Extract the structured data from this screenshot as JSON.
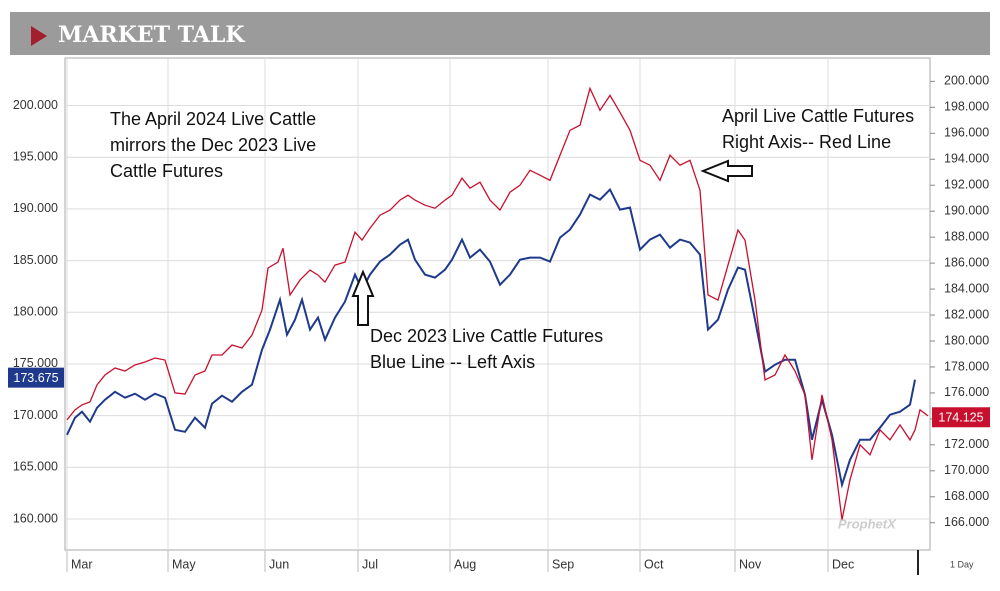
{
  "header": {
    "title": "MARKET TALK"
  },
  "chart_data": {
    "type": "line",
    "xlim": [
      0,
      865
    ],
    "xticks": [
      {
        "value": 2,
        "label": "Mar"
      },
      {
        "value": 103,
        "label": "May"
      },
      {
        "value": 200,
        "label": "Jun"
      },
      {
        "value": 293,
        "label": "Jul"
      },
      {
        "value": 385,
        "label": "Aug"
      },
      {
        "value": 483,
        "label": "Sep"
      },
      {
        "value": 575,
        "label": "Oct"
      },
      {
        "value": 670,
        "label": "Nov"
      },
      {
        "value": 763,
        "label": "Dec"
      }
    ],
    "ylim": [
      157,
      204.6
    ],
    "yticks": [
      {
        "value": 160,
        "label": "160.000"
      },
      {
        "value": 165,
        "label": "165.000"
      },
      {
        "value": 170,
        "label": "170.000"
      },
      {
        "value": 175,
        "label": "175.000"
      },
      {
        "value": 180,
        "label": "180.000"
      },
      {
        "value": 185,
        "label": "185.000"
      },
      {
        "value": 190,
        "label": "190.000"
      },
      {
        "value": 195,
        "label": "195.000"
      },
      {
        "value": 200,
        "label": "200.000"
      }
    ],
    "y2lim": [
      163.9,
      201.8
    ],
    "y2ticks": [
      {
        "value": 166,
        "label": "166.000"
      },
      {
        "value": 168,
        "label": "168.000"
      },
      {
        "value": 170,
        "label": "170.000"
      },
      {
        "value": 172,
        "label": "172.000"
      },
      {
        "value": 174,
        "label": "174.000"
      },
      {
        "value": 176,
        "label": "176.000"
      },
      {
        "value": 178,
        "label": "178.000"
      },
      {
        "value": 180,
        "label": "180.000"
      },
      {
        "value": 182,
        "label": "182.000"
      },
      {
        "value": 184,
        "label": "184.000"
      },
      {
        "value": 186,
        "label": "186.000"
      },
      {
        "value": 188,
        "label": "188.000"
      },
      {
        "value": 190,
        "label": "190.000"
      },
      {
        "value": 192,
        "label": "192.000"
      },
      {
        "value": 194,
        "label": "194.000"
      },
      {
        "value": 196,
        "label": "196.000"
      },
      {
        "value": 198,
        "label": "198.000"
      },
      {
        "value": 200,
        "label": "200.000"
      }
    ],
    "grid": true,
    "series": [
      {
        "color": "#1f3a8c",
        "axis": "y",
        "x": [
          2,
          10,
          17,
          25,
          32,
          40,
          50,
          60,
          70,
          80,
          90,
          100,
          110,
          120,
          130,
          140,
          147,
          157,
          167,
          177,
          187,
          197,
          205,
          215,
          222,
          230,
          237,
          245,
          253,
          260,
          270,
          280,
          290,
          297,
          305,
          315,
          325,
          335,
          343,
          350,
          360,
          370,
          380,
          387,
          397,
          405,
          415,
          425,
          435,
          445,
          455,
          465,
          475,
          485,
          495,
          505,
          515,
          525,
          535,
          545,
          555,
          565,
          575,
          585,
          595,
          605,
          615,
          625,
          635,
          643,
          653,
          663,
          673,
          680,
          690,
          700,
          710,
          720,
          730,
          740,
          747,
          757,
          767,
          777,
          785,
          795,
          805,
          815,
          825,
          835,
          845,
          850
        ],
        "values": [
          168.15,
          169.8,
          170.38,
          169.41,
          170.76,
          171.54,
          172.31,
          171.73,
          172.12,
          171.54,
          172.12,
          171.73,
          168.63,
          168.44,
          169.8,
          168.83,
          171.15,
          171.93,
          171.35,
          172.31,
          172.99,
          176.38,
          178.32,
          181.22,
          177.83,
          179.28,
          181.22,
          178.32,
          179.48,
          177.35,
          179.48,
          181.03,
          183.64,
          182.19,
          183.64,
          184.9,
          185.58,
          186.54,
          187.03,
          185.09,
          183.64,
          183.35,
          184.12,
          185.09,
          187.03,
          185.29,
          186.06,
          184.9,
          182.67,
          183.64,
          185.09,
          185.29,
          185.29,
          184.9,
          187.22,
          188.0,
          189.45,
          191.38,
          190.9,
          191.87,
          189.93,
          190.13,
          186.06,
          187.03,
          187.51,
          186.25,
          187.03,
          186.74,
          185.58,
          178.32,
          179.28,
          182.19,
          184.32,
          184.12,
          179.28,
          174.25,
          174.93,
          175.41,
          175.41,
          172.02,
          167.67,
          171.54,
          168.15,
          163.31,
          165.73,
          167.67,
          167.67,
          168.83,
          170.09,
          170.38,
          171.06,
          173.48
        ],
        "last_label": {
          "value": 173.675,
          "label": "173.675"
        }
      },
      {
        "color": "#c8102e",
        "axis": "y2",
        "x": [
          2,
          10,
          17,
          25,
          32,
          40,
          50,
          60,
          70,
          80,
          90,
          100,
          110,
          120,
          130,
          140,
          147,
          157,
          167,
          177,
          187,
          197,
          203,
          213,
          218,
          225,
          235,
          245,
          253,
          260,
          270,
          280,
          290,
          297,
          305,
          315,
          325,
          335,
          343,
          350,
          360,
          370,
          380,
          387,
          397,
          405,
          415,
          425,
          435,
          445,
          455,
          465,
          475,
          485,
          495,
          505,
          515,
          525,
          535,
          545,
          555,
          565,
          575,
          585,
          595,
          605,
          615,
          625,
          635,
          643,
          653,
          663,
          673,
          680,
          690,
          700,
          710,
          720,
          730,
          740,
          747,
          757,
          767,
          777,
          785,
          795,
          805,
          815,
          825,
          835,
          845,
          850,
          855,
          863
        ],
        "values": [
          173.92,
          174.69,
          175.08,
          175.31,
          176.62,
          177.38,
          177.92,
          177.69,
          178.15,
          178.38,
          178.69,
          178.54,
          176.0,
          175.92,
          177.38,
          177.69,
          178.92,
          178.92,
          179.69,
          179.46,
          180.46,
          182.38,
          185.62,
          186.08,
          187.15,
          183.54,
          184.69,
          185.46,
          185.08,
          184.54,
          185.85,
          186.08,
          188.38,
          187.77,
          188.69,
          189.69,
          190.08,
          190.85,
          191.23,
          190.85,
          190.46,
          190.23,
          190.85,
          191.23,
          192.54,
          191.77,
          192.23,
          190.85,
          190.08,
          191.46,
          192.0,
          193.15,
          192.77,
          192.38,
          194.31,
          196.23,
          196.62,
          199.46,
          197.77,
          198.92,
          197.62,
          196.23,
          193.92,
          193.54,
          192.38,
          194.31,
          193.54,
          193.92,
          191.62,
          183.54,
          183.15,
          185.85,
          188.54,
          187.77,
          183.15,
          177.0,
          177.38,
          178.92,
          177.69,
          175.85,
          170.85,
          175.85,
          172.38,
          166.23,
          169.31,
          172.0,
          171.23,
          173.15,
          172.38,
          173.54,
          172.38,
          173.15,
          174.69,
          174.23
        ],
        "last_label": {
          "value": 174.125,
          "label": "174.125"
        }
      }
    ],
    "annotations": [
      {
        "lines": [
          "The April 2024 Live Cattle",
          "mirrors the Dec 2023 Live",
          "Cattle Futures"
        ]
      },
      {
        "lines": [
          "Dec 2023 Live Cattle Futures",
          "Blue Line -- Left Axis"
        ]
      },
      {
        "lines": [
          "April Live Cattle Futures",
          "Right Axis-- Red Line"
        ]
      }
    ],
    "watermark": "ProphetX",
    "interval": "1 Day"
  }
}
